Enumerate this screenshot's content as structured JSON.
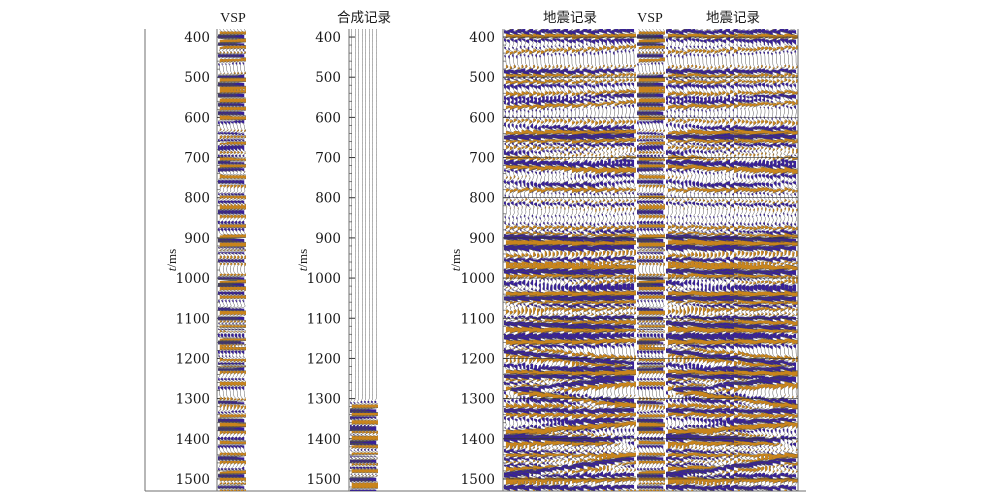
{
  "panels": [
    {
      "id": "vsp",
      "titles": [
        "VSP"
      ],
      "axis_label": "t/ms"
    },
    {
      "id": "synthetic",
      "titles": [
        "合成记录"
      ],
      "axis_label": "t/ms"
    },
    {
      "id": "seismic",
      "titles": [
        "地震记录",
        "VSP",
        "地震记录"
      ],
      "axis_label": "t/ms"
    }
  ],
  "axis_label_italic": "t",
  "axis_label_unit": "/ms",
  "time_ticks": [
    "400",
    "500",
    "600",
    "700",
    "800",
    "900",
    "1000",
    "1100",
    "1200",
    "1300",
    "1400",
    "1500"
  ],
  "time_range_ms": [
    380,
    1530
  ],
  "colors": {
    "positive_fill": "#c8841c",
    "negative_fill": "#38209a",
    "trace_line": "#4a4a4a",
    "frame": "#6f6f6f",
    "grid": "#2d2d2d"
  }
}
